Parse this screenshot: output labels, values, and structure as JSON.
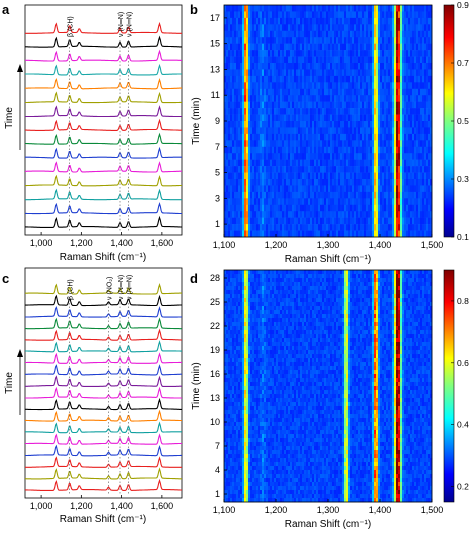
{
  "chart_data": [
    {
      "panel": "a",
      "type": "line",
      "description_text": "Stacked Raman spectra vs time",
      "xlabel": "Raman Shift (cm⁻¹)",
      "ylabel": "Time",
      "xlim": [
        920,
        1700
      ],
      "xticks": [
        1000,
        1200,
        1400,
        1600
      ],
      "xticklabels": [
        "1,000",
        "1,200",
        "1,400",
        "1,600"
      ],
      "peaks": [
        1075,
        1142,
        1190,
        1392,
        1434,
        1588
      ],
      "annotations": [
        {
          "text": "β (CH)",
          "x": 1142
        },
        {
          "text": "ν (N═N)",
          "x": 1392
        },
        {
          "text": "ν (N═N)",
          "x": 1434
        }
      ],
      "series_colors": [
        "#000000",
        "#1f3fd0",
        "#10a0a0",
        "#a0a000",
        "#e81dd8",
        "#1f3fd0",
        "#0a8a3a",
        "#e8201f",
        "#7a1b9a",
        "#a0a000",
        "#ff8000",
        "#1aa8a8",
        "#e81dd8",
        "#000000",
        "#e8201f"
      ]
    },
    {
      "panel": "b",
      "type": "heatmap",
      "xlabel": "Raman Shift (cm⁻¹)",
      "ylabel": "Time (min)",
      "xlim": [
        1100,
        1500
      ],
      "xticks": [
        1100,
        1200,
        1300,
        1400,
        1500
      ],
      "xticklabels": [
        "1,100",
        "1,200",
        "1,300",
        "1,400",
        "1,500"
      ],
      "ylim": [
        0,
        18
      ],
      "yticks": [
        1,
        3,
        5,
        7,
        9,
        11,
        13,
        15,
        17
      ],
      "colorbar": {
        "min": 0.1,
        "max": 0.9,
        "ticks": [
          "0.1",
          "0.3",
          "0.5",
          "0.7",
          "0.9"
        ]
      },
      "bands": [
        {
          "x": 1142,
          "intensity": 0.75
        },
        {
          "x": 1392,
          "intensity": 0.6
        },
        {
          "x": 1434,
          "intensity": 0.9
        }
      ]
    },
    {
      "panel": "c",
      "type": "line",
      "xlabel": "Raman Shift (cm⁻¹)",
      "ylabel": "Time",
      "xlim": [
        920,
        1700
      ],
      "xticks": [
        1000,
        1200,
        1400,
        1600
      ],
      "xticklabels": [
        "1,000",
        "1,200",
        "1,400",
        "1,600"
      ],
      "peaks": [
        1075,
        1142,
        1190,
        1335,
        1392,
        1434,
        1588
      ],
      "annotations": [
        {
          "text": "β (CH)",
          "x": 1142
        },
        {
          "text": "ν (NO₂)",
          "x": 1335
        },
        {
          "text": "ν (N═N)",
          "x": 1392
        },
        {
          "text": "ν (N═N)",
          "x": 1434
        }
      ],
      "series_colors": [
        "#e8201f",
        "#a0a000",
        "#e8201f",
        "#1f3fd0",
        "#e81dd8",
        "#10a0a0",
        "#ff8000",
        "#000000",
        "#e81dd8",
        "#7a1b9a",
        "#1f3fd0",
        "#e81dd8",
        "#10a0a0",
        "#e8201f",
        "#0a8a3a",
        "#1f3fd0",
        "#000000",
        "#a0a000"
      ]
    },
    {
      "panel": "d",
      "type": "heatmap",
      "xlabel": "Raman Shift (cm⁻¹)",
      "ylabel": "Time (min)",
      "xlim": [
        1100,
        1500
      ],
      "xticks": [
        1100,
        1200,
        1300,
        1400,
        1500
      ],
      "xticklabels": [
        "1,100",
        "1,200",
        "1,300",
        "1,400",
        "1,500"
      ],
      "ylim": [
        0,
        29
      ],
      "yticks": [
        1,
        4,
        7,
        10,
        13,
        16,
        19,
        22,
        25,
        28
      ],
      "colorbar": {
        "min": 0.15,
        "max": 0.9,
        "ticks": [
          "0.2",
          "0.4",
          "0.6",
          "0.8"
        ]
      },
      "bands": [
        {
          "x": 1142,
          "intensity": 0.55
        },
        {
          "x": 1335,
          "intensity": 0.5
        },
        {
          "x": 1392,
          "intensity": 0.75
        },
        {
          "x": 1434,
          "intensity": 0.95
        }
      ]
    }
  ],
  "labels": {
    "a": "a",
    "b": "b",
    "c": "c",
    "d": "d",
    "raman_shift": "Raman Shift (cm⁻¹)",
    "time": "Time",
    "time_min": "Time (min)"
  }
}
